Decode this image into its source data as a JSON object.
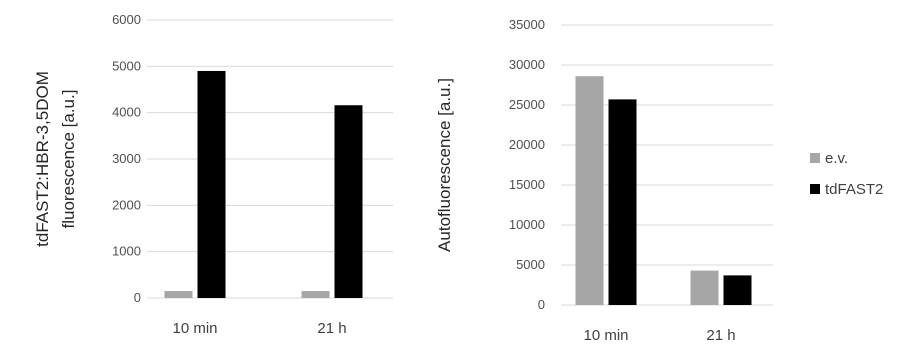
{
  "colors": {
    "ev": "#a6a6a6",
    "tdfast2": "#000000",
    "grid": "#d9d9d9"
  },
  "chart_data": [
    {
      "type": "bar",
      "title": "",
      "xlabel": "",
      "ylabel_lines": [
        "tdFAST2:HBR-3,5DOM",
        "fluorescence [a.u.]"
      ],
      "categories": [
        "10 min",
        "21 h"
      ],
      "ylim": [
        0,
        6000
      ],
      "yticks": [
        0,
        1000,
        2000,
        3000,
        4000,
        5000,
        6000
      ],
      "grid": true,
      "legend": "none",
      "series": [
        {
          "name": "e.v.",
          "values": [
            150,
            150
          ]
        },
        {
          "name": "tdFAST2",
          "values": [
            4900,
            4160
          ]
        }
      ]
    },
    {
      "type": "bar",
      "title": "",
      "xlabel": "",
      "ylabel_lines": [
        "Autofluorescence [a.u.]"
      ],
      "categories": [
        "10 min",
        "21 h"
      ],
      "ylim": [
        0,
        35000
      ],
      "yticks": [
        0,
        5000,
        10000,
        15000,
        20000,
        25000,
        30000,
        35000
      ],
      "grid": true,
      "legend": "right",
      "series": [
        {
          "name": "e.v.",
          "values": [
            28600,
            4300
          ]
        },
        {
          "name": "tdFAST2",
          "values": [
            25700,
            3700
          ]
        }
      ]
    }
  ]
}
